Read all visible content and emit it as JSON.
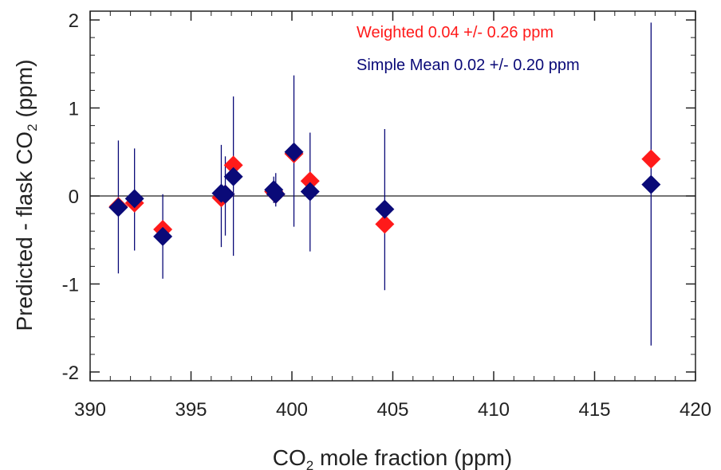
{
  "chart_data": {
    "type": "scatter",
    "xlabel": {
      "pre": "CO",
      "sub": "2",
      "post": " mole fraction (ppm)"
    },
    "ylabel": {
      "pre": "Predicted - flask CO",
      "sub": "2",
      "post": " (ppm)"
    },
    "xlim": [
      390,
      420
    ],
    "ylim": [
      -2.1,
      2.1
    ],
    "xticks": [
      390,
      395,
      400,
      405,
      410,
      415,
      420
    ],
    "yticks": [
      -2,
      -1,
      0,
      1,
      2
    ],
    "xtick_labels": [
      "390",
      "395",
      "400",
      "405",
      "410",
      "415",
      "420"
    ],
    "ytick_labels": [
      "-2",
      "-1",
      "0",
      "1",
      "2"
    ],
    "zero_line": true,
    "grid": false,
    "legend_position": "top-right",
    "series": [
      {
        "name": "Weighted 0.04 +/- 0.26 ppm",
        "color": "#ff1a1a",
        "marker": "diamond",
        "points": [
          {
            "x": 391.4,
            "y": -0.12
          },
          {
            "x": 392.2,
            "y": -0.08
          },
          {
            "x": 393.6,
            "y": -0.38
          },
          {
            "x": 396.5,
            "y": -0.02
          },
          {
            "x": 396.7,
            "y": 0.02
          },
          {
            "x": 397.1,
            "y": 0.35
          },
          {
            "x": 399.1,
            "y": 0.05
          },
          {
            "x": 399.2,
            "y": 0.02
          },
          {
            "x": 400.1,
            "y": 0.48
          },
          {
            "x": 400.9,
            "y": 0.17
          },
          {
            "x": 404.6,
            "y": -0.32
          },
          {
            "x": 417.8,
            "y": 0.42
          }
        ]
      },
      {
        "name": "Simple Mean 0.02 +/- 0.20 ppm",
        "color": "#0a0a78",
        "marker": "diamond",
        "points": [
          {
            "x": 391.4,
            "y": -0.13,
            "err_low": -0.88,
            "err_high": 0.63
          },
          {
            "x": 392.2,
            "y": -0.03,
            "err_low": -0.62,
            "err_high": 0.54
          },
          {
            "x": 393.6,
            "y": -0.46,
            "err_low": -0.94,
            "err_high": 0.02
          },
          {
            "x": 396.5,
            "y": 0.03,
            "err_low": -0.58,
            "err_high": 0.58
          },
          {
            "x": 396.7,
            "y": 0.02,
            "err_low": -0.45,
            "err_high": 0.45
          },
          {
            "x": 397.1,
            "y": 0.22,
            "err_low": -0.68,
            "err_high": 1.13
          },
          {
            "x": 399.1,
            "y": 0.07,
            "err_low": -0.08,
            "err_high": 0.22
          },
          {
            "x": 399.2,
            "y": 0.02,
            "err_low": -0.12,
            "err_high": 0.26
          },
          {
            "x": 400.1,
            "y": 0.5,
            "err_low": -0.35,
            "err_high": 1.37
          },
          {
            "x": 400.9,
            "y": 0.05,
            "err_low": -0.63,
            "err_high": 0.72
          },
          {
            "x": 404.6,
            "y": -0.15,
            "err_low": -1.07,
            "err_high": 0.76
          },
          {
            "x": 417.8,
            "y": 0.13,
            "err_low": -1.7,
            "err_high": 1.97
          }
        ]
      }
    ]
  }
}
